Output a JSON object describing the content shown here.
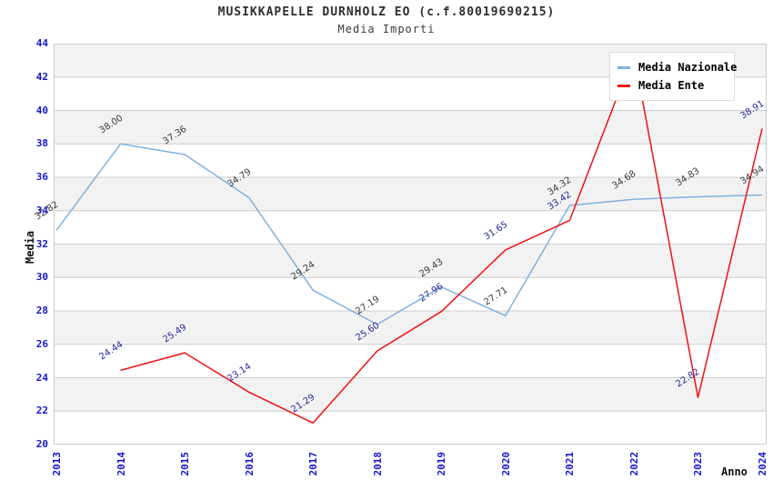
{
  "header": {
    "title": "MUSIKKAPELLE DURNHOLZ EO (c.f.80019690215)",
    "subtitle": "Media Importi"
  },
  "axes": {
    "y_label": "Media",
    "x_label": "Anno",
    "y_ticks": [
      "44",
      "42",
      "40",
      "38",
      "36",
      "34",
      "32",
      "30",
      "28",
      "26",
      "24",
      "22",
      "20"
    ],
    "x_ticks": [
      "2013",
      "2014",
      "2015",
      "2016",
      "2017",
      "2018",
      "2019",
      "2020",
      "2021",
      "2022",
      "2023",
      "2024"
    ]
  },
  "legend": {
    "position": "top-right-inside",
    "items": [
      {
        "label": "Media Nazionale",
        "color": "#7fb1e0"
      },
      {
        "label": "Media Ente",
        "color": "#ee1111"
      }
    ]
  },
  "colors": {
    "background": "#ffffff",
    "band_gray": "#f2f2f2",
    "band_white": "#ffffff",
    "gridline": "#cccccc",
    "plot_border": "#cccccc",
    "tick_text": "#1515cd",
    "title_text": "#2e2e2e",
    "series_nazionale_line": "#7fb1e0",
    "series_nazionale_label": "#3a3a3a",
    "series_ente_line": "#ee1111",
    "series_ente_label": "#28289d"
  },
  "chart_data": {
    "type": "line",
    "title": "MUSIKKAPELLE DURNHOLZ EO (c.f.80019690215)",
    "subtitle": "Media Importi",
    "xlabel": "Anno",
    "ylabel": "Media",
    "x": [
      2013,
      2014,
      2015,
      2016,
      2017,
      2018,
      2019,
      2020,
      2021,
      2022,
      2023,
      2024
    ],
    "ylim": [
      20,
      44
    ],
    "ytick_step": 2,
    "grid": "horizontal-gridlines-with-alternating-bands",
    "legend_position": "top-right",
    "series": [
      {
        "name": "Media Nazionale",
        "color": "#7fb1e0",
        "label_color": "#3a3a3a",
        "values": [
          32.82,
          38.0,
          37.36,
          34.79,
          29.24,
          27.19,
          29.43,
          27.71,
          34.32,
          34.68,
          34.83,
          34.94
        ],
        "labels": [
          "32.82",
          "38.00",
          "37.36",
          "34.79",
          "29.24",
          "27.19",
          "29.43",
          "27.71",
          "34.32",
          "34.68",
          "34.83",
          "34.94"
        ]
      },
      {
        "name": "Media Ente",
        "color": "#ee1111",
        "label_color": "#28289d",
        "values": [
          null,
          24.44,
          25.49,
          23.14,
          21.29,
          25.6,
          27.96,
          31.65,
          33.42,
          43.4,
          22.82,
          38.91
        ],
        "labels": [
          null,
          "24.44",
          "25.49",
          "23.14",
          "21.29",
          "25.60",
          "27.96",
          "31.65",
          "33.42",
          null,
          "22.82",
          "38.91"
        ],
        "hidden_label_note": "2022 point label is hidden behind the legend; value ~43.4 estimated from line position"
      }
    ]
  }
}
